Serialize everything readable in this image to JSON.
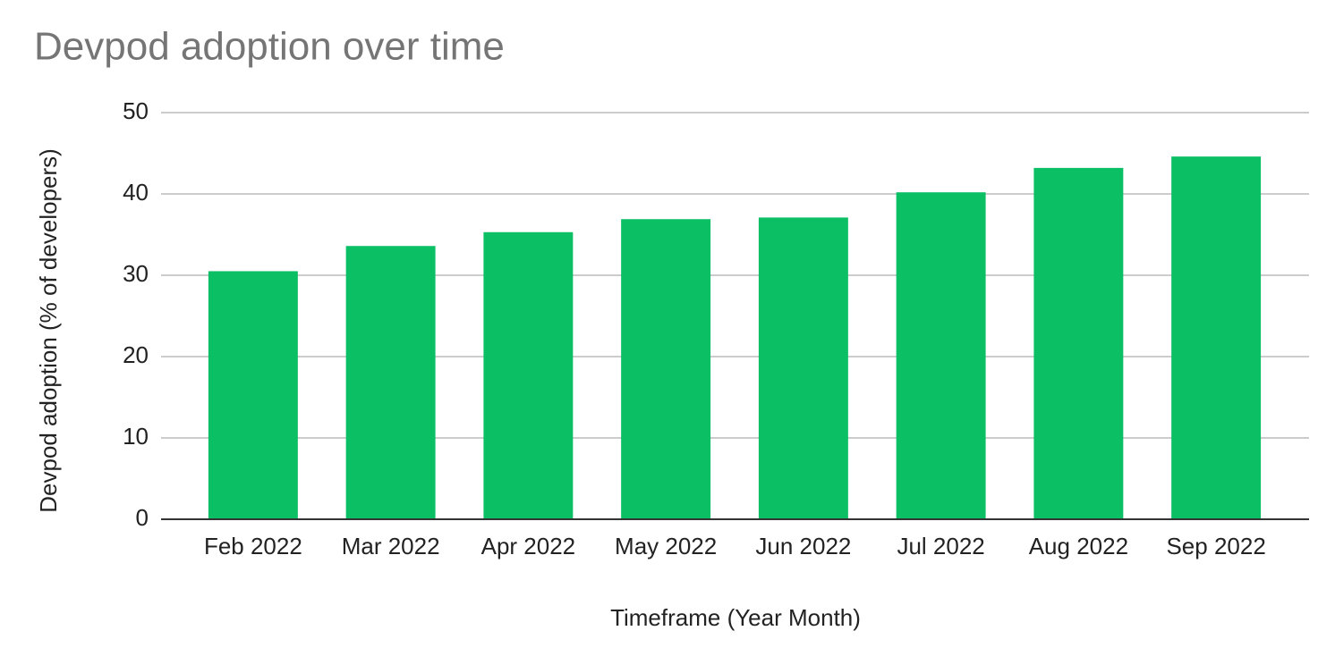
{
  "chart_data": {
    "type": "bar",
    "title": "Devpod adoption over time",
    "x_label": "Timeframe (Year Month)",
    "y_label": "Devpod adoption (% of developers)",
    "categories": [
      "Feb 2022",
      "Mar 2022",
      "Apr 2022",
      "May 2022",
      "Jun 2022",
      "Jul 2022",
      "Aug 2022",
      "Sep 2022"
    ],
    "values": [
      30.5,
      33.6,
      35.3,
      36.9,
      37.1,
      40.2,
      43.2,
      44.6
    ],
    "color": "#0abf64",
    "ylim": [
      0,
      50
    ],
    "yticks": [
      0,
      10,
      20,
      30,
      40,
      50
    ],
    "grid": true
  }
}
